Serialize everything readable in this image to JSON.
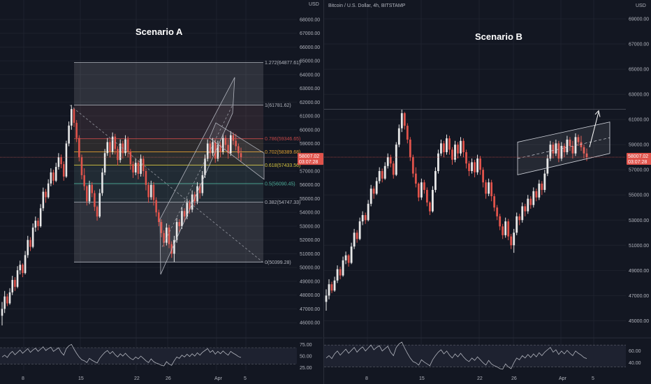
{
  "chart_data": [
    {
      "type": "candlestick",
      "title": "Scenario A",
      "currency": "USD",
      "y_ticks": [
        "68000.00",
        "67000.00",
        "66000.00",
        "65000.00",
        "64000.00",
        "63000.00",
        "62000.00",
        "61000.00",
        "60000.00",
        "59000.00",
        "58000.00",
        "57000.00",
        "56000.00",
        "55000.00",
        "54000.00",
        "53000.00",
        "52000.00",
        "51000.00",
        "50000.00",
        "49000.00",
        "48000.00",
        "47000.00",
        "46000.00"
      ],
      "ylim": [
        45500,
        68500
      ],
      "x_ticks": [
        "8",
        "15",
        "22",
        "26",
        "Apr",
        "5"
      ],
      "last_price": "58007.02",
      "countdown": "03:07:28",
      "fib_levels": [
        {
          "label": "1.272(64877.61)",
          "value": 64877.61,
          "color": "#b2b5be"
        },
        {
          "label": "1(61781.62)",
          "value": 61781.62,
          "color": "#b2b5be"
        },
        {
          "label": "0.786(59346.65)",
          "value": 59346.65,
          "color": "#c74848"
        },
        {
          "label": "0.702(58389.68)",
          "value": 58389.68,
          "color": "#e0a030"
        },
        {
          "label": "0.618(57433.56)",
          "value": 57433.56,
          "color": "#d6c640"
        },
        {
          "label": "0.5(56090.45)",
          "value": 56090.45,
          "color": "#4caf9a"
        },
        {
          "label": "0.382(54747.33)",
          "value": 54747.33,
          "color": "#b2b5be"
        },
        {
          "label": "0(50399.28)",
          "value": 50399.28,
          "color": "#b2b5be"
        }
      ],
      "rsi": {
        "ticks": [
          "75.00",
          "50.00",
          "25.00"
        ],
        "ylim": [
          20,
          80
        ]
      }
    },
    {
      "type": "candlestick",
      "title": "Scenario B",
      "symbol": "Bitcoin / U.S. Dollar, 4h, BITSTAMP",
      "currency": "USD",
      "y_ticks": [
        "69000.00",
        "67000.00",
        "65000.00",
        "63000.00",
        "61000.00",
        "59000.00",
        "57000.00",
        "55000.00",
        "53000.00",
        "51000.00",
        "49000.00",
        "47000.00",
        "45000.00"
      ],
      "ylim": [
        44300,
        69500
      ],
      "x_ticks": [
        "8",
        "15",
        "22",
        "26",
        "Apr",
        "5"
      ],
      "last_price": "58007.02",
      "countdown": "03:07:28",
      "rsi": {
        "ticks": [
          "60.00",
          "40.00"
        ],
        "ylim": [
          30,
          75
        ]
      }
    }
  ],
  "ohlc": [
    [
      46500,
      47500,
      45800,
      47000
    ],
    [
      47000,
      48300,
      46700,
      47900
    ],
    [
      47900,
      48100,
      47200,
      47400
    ],
    [
      47400,
      48500,
      47300,
      48200
    ],
    [
      48200,
      49400,
      48000,
      49100
    ],
    [
      49100,
      49300,
      48300,
      48600
    ],
    [
      48600,
      50100,
      48500,
      49800
    ],
    [
      49800,
      50500,
      49500,
      50200
    ],
    [
      50200,
      50300,
      49300,
      49600
    ],
    [
      49600,
      51200,
      49500,
      50900
    ],
    [
      50900,
      52300,
      50700,
      52000
    ],
    [
      52000,
      52200,
      51200,
      51500
    ],
    [
      51500,
      53200,
      51400,
      52900
    ],
    [
      52900,
      53700,
      52600,
      53400
    ],
    [
      53400,
      53600,
      52700,
      53000
    ],
    [
      53000,
      54600,
      52900,
      54300
    ],
    [
      54300,
      55800,
      54100,
      55500
    ],
    [
      55500,
      55700,
      54700,
      55100
    ],
    [
      55100,
      56400,
      55000,
      56100
    ],
    [
      56100,
      57200,
      55900,
      56900
    ],
    [
      56900,
      57100,
      56000,
      56300
    ],
    [
      56300,
      57600,
      56200,
      57300
    ],
    [
      57300,
      58300,
      57100,
      58000
    ],
    [
      58000,
      58200,
      57200,
      57500
    ],
    [
      57500,
      57700,
      56300,
      56600
    ],
    [
      56600,
      59200,
      56500,
      59000
    ],
    [
      59000,
      60600,
      58800,
      60300
    ],
    [
      60300,
      61800,
      60000,
      61500
    ],
    [
      61500,
      61600,
      60200,
      60500
    ],
    [
      60500,
      60700,
      59100,
      59400
    ],
    [
      59400,
      59600,
      57700,
      58000
    ],
    [
      58000,
      58200,
      56400,
      56700
    ],
    [
      56700,
      57200,
      55600,
      55900
    ],
    [
      55900,
      56000,
      54500,
      54800
    ],
    [
      54800,
      56300,
      54600,
      56000
    ],
    [
      56000,
      56200,
      55100,
      55400
    ],
    [
      55400,
      55600,
      54100,
      54400
    ],
    [
      54400,
      54500,
      53400,
      53700
    ],
    [
      53700,
      55700,
      53600,
      55400
    ],
    [
      55400,
      57200,
      55200,
      56900
    ],
    [
      56900,
      58600,
      56700,
      58300
    ],
    [
      58300,
      59400,
      58100,
      59100
    ],
    [
      59100,
      59300,
      58000,
      58400
    ],
    [
      58400,
      59800,
      58200,
      59500
    ],
    [
      59500,
      59700,
      58200,
      58600
    ],
    [
      58600,
      58800,
      57400,
      57800
    ],
    [
      57800,
      59300,
      57600,
      59000
    ],
    [
      59000,
      59200,
      57900,
      58300
    ],
    [
      58300,
      59600,
      58100,
      59300
    ],
    [
      59300,
      59500,
      58000,
      58400
    ],
    [
      58400,
      58600,
      57100,
      57500
    ],
    [
      57500,
      57700,
      56500,
      56900
    ],
    [
      56900,
      57900,
      56700,
      57600
    ],
    [
      57600,
      57800,
      56400,
      56800
    ],
    [
      56800,
      58200,
      56600,
      57900
    ],
    [
      57900,
      58100,
      56600,
      57000
    ],
    [
      57000,
      57200,
      55600,
      56000
    ],
    [
      56000,
      56200,
      54700,
      55100
    ],
    [
      55100,
      56300,
      54900,
      56000
    ],
    [
      56000,
      56200,
      54500,
      54900
    ],
    [
      54900,
      55100,
      53700,
      54000
    ],
    [
      54000,
      54200,
      53000,
      53300
    ],
    [
      53300,
      53500,
      52200,
      52500
    ],
    [
      52500,
      52700,
      51500,
      51800
    ],
    [
      51800,
      53200,
      51600,
      52900
    ],
    [
      52900,
      53100,
      51400,
      51700
    ],
    [
      51700,
      51900,
      50700,
      51000
    ],
    [
      51000,
      52300,
      50400,
      52000
    ],
    [
      52000,
      53600,
      51800,
      53300
    ],
    [
      53300,
      53500,
      52600,
      53000
    ],
    [
      53000,
      54400,
      52800,
      54100
    ],
    [
      54100,
      54300,
      53300,
      53700
    ],
    [
      53700,
      55000,
      53500,
      54700
    ],
    [
      54700,
      54900,
      53900,
      54200
    ],
    [
      54200,
      55600,
      54000,
      55300
    ],
    [
      55300,
      55500,
      54500,
      54800
    ],
    [
      54800,
      56200,
      54600,
      55900
    ],
    [
      55900,
      56100,
      55000,
      55400
    ],
    [
      55400,
      57000,
      55200,
      56700
    ],
    [
      56700,
      58200,
      56500,
      57900
    ],
    [
      57900,
      59300,
      57700,
      59000
    ],
    [
      59000,
      59200,
      57900,
      58300
    ],
    [
      58300,
      59400,
      58100,
      59100
    ],
    [
      59100,
      59300,
      57600,
      57900
    ],
    [
      57900,
      59200,
      57700,
      58900
    ],
    [
      58900,
      59100,
      58000,
      58400
    ],
    [
      58400,
      59700,
      58200,
      59400
    ],
    [
      59400,
      59600,
      58500,
      58900
    ],
    [
      58900,
      59300,
      57900,
      58300
    ],
    [
      58300,
      59900,
      58100,
      59600
    ],
    [
      59600,
      59800,
      58900,
      59200
    ],
    [
      59200,
      59700,
      58500,
      58800
    ],
    [
      58800,
      59000,
      57900,
      58300
    ],
    [
      58300,
      58700,
      57700,
      58007
    ]
  ],
  "rsi_series": [
    48,
    52,
    47,
    55,
    60,
    53,
    58,
    63,
    56,
    61,
    66,
    58,
    63,
    67,
    60,
    65,
    70,
    62,
    66,
    69,
    60,
    64,
    68,
    58,
    52,
    66,
    72,
    75,
    65,
    56,
    48,
    42,
    40,
    36,
    45,
    41,
    38,
    35,
    45,
    52,
    58,
    62,
    55,
    60,
    53,
    48,
    55,
    50,
    56,
    50,
    45,
    42,
    48,
    44,
    50,
    45,
    40,
    36,
    44,
    38,
    35,
    33,
    30,
    29,
    38,
    33,
    30,
    40,
    48,
    45,
    52,
    48,
    54,
    49,
    55,
    50,
    57,
    52,
    58,
    62,
    66,
    58,
    62,
    54,
    60,
    55,
    61,
    56,
    52,
    60,
    56,
    53,
    49,
    47
  ],
  "annotation_arrow": "up-right arrow"
}
